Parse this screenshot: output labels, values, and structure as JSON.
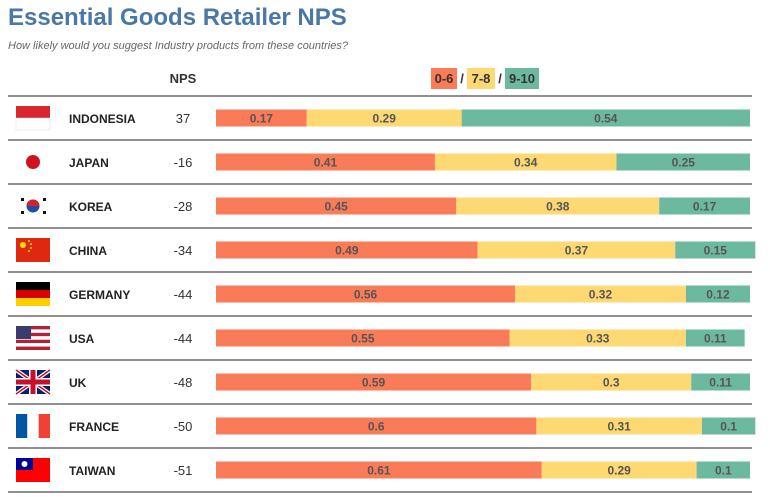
{
  "title": "Essential Goods Retailer NPS",
  "subtitle": "How likely would you suggest Industry products from these countries?",
  "nps_header": "NPS",
  "legend": {
    "items": [
      {
        "label": "0-6",
        "color": "#f97b57"
      },
      {
        "label": "7-8",
        "color": "#fdd873"
      },
      {
        "label": "9-10",
        "color": "#6cb99f"
      }
    ],
    "separator": "/"
  },
  "colors": {
    "detractor": "#f97b57",
    "passive": "#fdd873",
    "promoter": "#6cb99f"
  },
  "chart_data": {
    "type": "bar",
    "stacked": true,
    "orientation": "horizontal",
    "categories": [
      "INDONESIA",
      "JAPAN",
      "KOREA",
      "CHINA",
      "GERMANY",
      "USA",
      "UK",
      "FRANCE",
      "TAIWAN"
    ],
    "flags": [
      "indonesia-flag",
      "japan-flag",
      "korea-flag",
      "china-flag",
      "germany-flag",
      "usa-flag",
      "uk-flag",
      "france-flag",
      "taiwan-flag"
    ],
    "nps": [
      37,
      -16,
      -28,
      -34,
      -44,
      -44,
      -48,
      -50,
      -51
    ],
    "series": [
      {
        "name": "0-6",
        "values": [
          0.17,
          0.41,
          0.45,
          0.49,
          0.56,
          0.55,
          0.59,
          0.6,
          0.61
        ]
      },
      {
        "name": "7-8",
        "values": [
          0.29,
          0.34,
          0.38,
          0.37,
          0.32,
          0.33,
          0.3,
          0.31,
          0.29
        ]
      },
      {
        "name": "9-10",
        "values": [
          0.54,
          0.25,
          0.17,
          0.15,
          0.12,
          0.11,
          0.11,
          0.1,
          0.1
        ]
      }
    ]
  }
}
